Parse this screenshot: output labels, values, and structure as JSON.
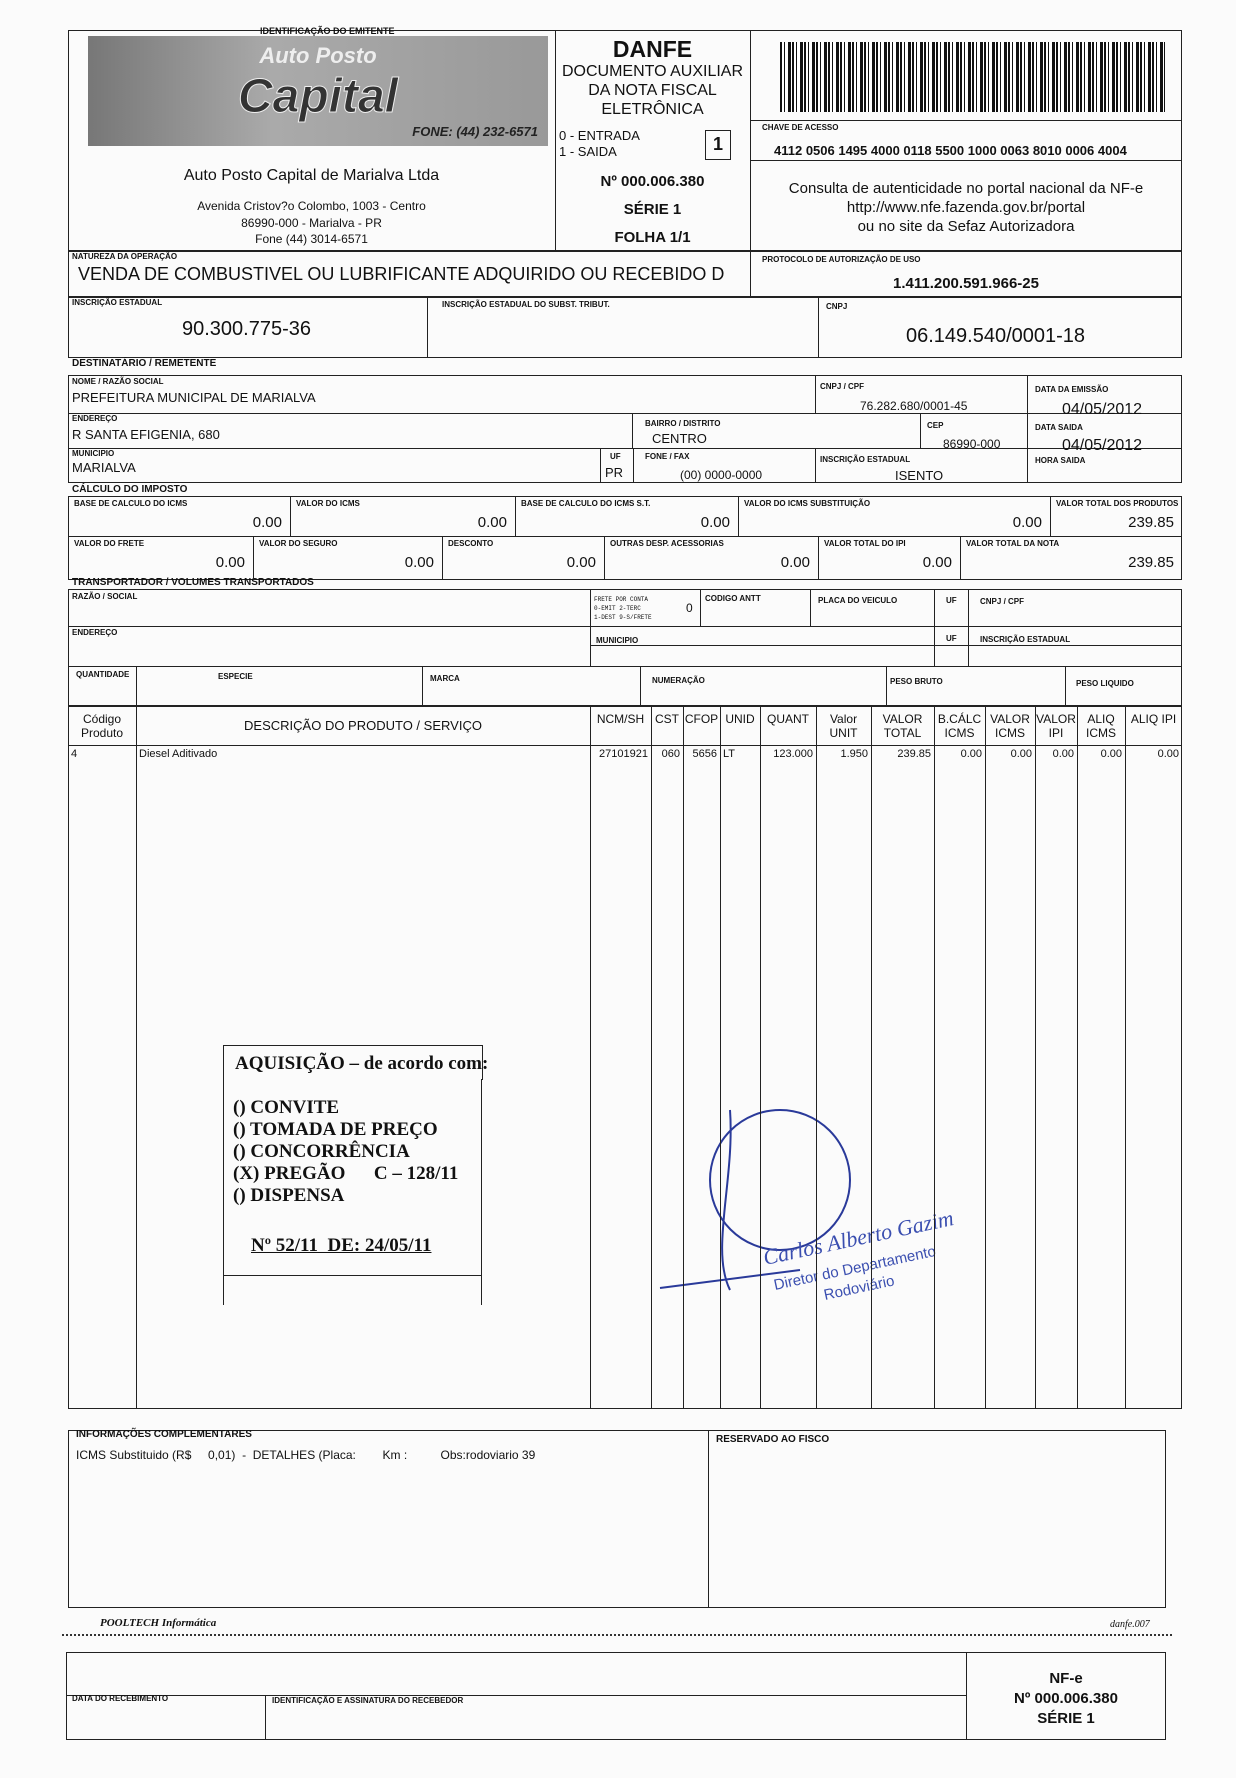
{
  "emitente": {
    "section_label": "IDENTIFICAÇÃO DO EMITENTE",
    "logo_line1": "Auto Posto",
    "logo_line2": "Capital",
    "logo_phone": "FONE: (44) 232-6571",
    "name": "Auto Posto Capital de Marialva Ltda",
    "address": "Avenida Cristov?o Colombo, 1003 - Centro",
    "city": "86990-000 - Marialva - PR",
    "phone": "Fone (44) 3014-6571"
  },
  "danfe": {
    "title": "DANFE",
    "subtitle1": "DOCUMENTO AUXILIAR",
    "subtitle2": "DA NOTA FISCAL",
    "subtitle3": "ELETRÔNICA",
    "entrada": "0 - ENTRADA",
    "saida": "1 - SAIDA",
    "tipo": "1",
    "numero": "Nº 000.006.380",
    "serie": "SÉRIE 1",
    "folha": "FOLHA 1/1"
  },
  "chave": {
    "label": "CHAVE DE ACESSO",
    "value": "4112 0506 1495 4000 0118 5500 1000 0063 8010 0006 4004",
    "consulta1": "Consulta de autenticidade no portal nacional da NF-e",
    "consulta2": "http://www.nfe.fazenda.gov.br/portal",
    "consulta3": "ou no site da Sefaz Autorizadora"
  },
  "natureza": {
    "label": "NATUREZA DA OPERAÇÃO",
    "value": "VENDA DE COMBUSTIVEL OU LUBRIFICANTE ADQUIRIDO OU RECEBIDO D"
  },
  "protocolo": {
    "label": "PROTOCOLO DE AUTORIZAÇÃO DE USO",
    "value": "1.411.200.591.966-25"
  },
  "ie": {
    "label": "INSCRIÇÃO ESTADUAL",
    "value": "90.300.775-36",
    "st_label": "INSCRIÇÃO ESTADUAL DO SUBST. TRIBUT.",
    "cnpj_label": "CNPJ",
    "cnpj": "06.149.540/0001-18"
  },
  "dest": {
    "title": "DESTINATÁRIO / REMETENTE",
    "nome_label": "NOME / RAZÃO SOCIAL",
    "nome": "PREFEITURA MUNICIPAL DE MARIALVA",
    "cnpj_label": "CNPJ / CPF",
    "cnpj": "76.282.680/0001-45",
    "emissao_label": "DATA DA EMISSÃO",
    "emissao": "04/05/2012",
    "end_label": "ENDEREÇO",
    "endereco": "R SANTA EFIGENIA, 680",
    "bairro_label": "BAIRRO / DISTRITO",
    "bairro": "CENTRO",
    "cep_label": "CEP",
    "cep": "86990-000",
    "saida_label": "DATA SAIDA",
    "saida": "04/05/2012",
    "mun_label": "MUNICIPIO",
    "municipio": "MARIALVA",
    "uf_label": "UF",
    "uf": "PR",
    "fone_label": "FONE / FAX",
    "fone": "(00) 0000-0000",
    "ie_label": "INSCRIÇÃO ESTADUAL",
    "ie": "ISENTO",
    "hora_label": "HORA SAIDA"
  },
  "imposto": {
    "title": "CÁLCULO DO IMPOSTO",
    "fields": [
      {
        "label": "BASE DE CALCULO DO ICMS",
        "value": "0.00"
      },
      {
        "label": "VALOR DO ICMS",
        "value": "0.00"
      },
      {
        "label": "BASE DE CALCULO DO ICMS S.T.",
        "value": "0.00"
      },
      {
        "label": "VALOR DO ICMS SUBSTITUIÇÃO",
        "value": "0.00"
      },
      {
        "label": "VALOR TOTAL DOS PRODUTOS",
        "value": "239.85"
      },
      {
        "label": "VALOR DO FRETE",
        "value": "0.00"
      },
      {
        "label": "VALOR DO SEGURO",
        "value": "0.00"
      },
      {
        "label": "DESCONTO",
        "value": "0.00"
      },
      {
        "label": "OUTRAS DESP. ACESSORIAS",
        "value": "0.00"
      },
      {
        "label": "VALOR TOTAL DO IPI",
        "value": "0.00"
      },
      {
        "label": "VALOR TOTAL DA NOTA",
        "value": "239.85"
      }
    ]
  },
  "transp": {
    "title": "TRANSPORTADOR / VOLUMES TRANSPORTADOS",
    "razao": "RAZÃO / SOCIAL",
    "frete1": "FRETE POR CONTA",
    "frete2": "0-EMIT 2-TERC",
    "frete3": "1-DEST 9-S/FRETE",
    "frete_value": "0",
    "antt": "CODIGO ANTT",
    "placa": "PLACA DO VEICULO",
    "uf": "UF",
    "cnpj": "CNPJ / CPF",
    "endereco": "ENDEREÇO",
    "municipio": "MUNICIPIO",
    "ie": "INSCRIÇÃO ESTADUAL",
    "quantidade": "QUANTIDADE",
    "especie": "ESPECIE",
    "marca": "MARCA",
    "numeracao": "NUMERAÇÃO",
    "peso_bruto": "PESO BRUTO",
    "peso_liquido": "PESO LIQUIDO"
  },
  "produtos": {
    "headers": [
      "Código Produto",
      "DESCRIÇÃO DO PRODUTO / SERVIÇO",
      "NCM/SH",
      "CST",
      "CFOP",
      "UNID",
      "QUANT",
      "Valor UNIT",
      "VALOR TOTAL",
      "B.CÁLC ICMS",
      "VALOR ICMS",
      "VALOR IPI",
      "ALIQ ICMS",
      "ALIQ IPI"
    ],
    "rows": [
      [
        "4",
        "Diesel Aditivado",
        "27101921",
        "060",
        "5656",
        "LT",
        "123.000",
        "1.950",
        "239.85",
        "0.00",
        "0.00",
        "0.00",
        "0.00",
        "0.00"
      ]
    ]
  },
  "stamp": {
    "title": "AQUISIÇÃO – de acordo com:",
    "options": [
      "() CONVITE",
      "() TOMADA DE PREÇO",
      "() CONCORRÊNCIA",
      "(X) PREGÃO      C – 128/11",
      "() DISPENSA"
    ],
    "numero": "Nº 52/11  DE: 24/05/11"
  },
  "signature": {
    "name": "Carlos Alberto Gazim",
    "role1": "Diretor do Departamento",
    "role2": "Rodoviário"
  },
  "info": {
    "label": "INFORMAÇÕES COMPLEMENTARES",
    "text": "ICMS Substituido (R$     0,01)  -  DETALHES (Placa:        Km :          Obs:rodoviario 39",
    "fisco_label": "RESERVADO AO FISCO"
  },
  "footer": {
    "left": "POOLTECH Informática",
    "right": "danfe.007"
  },
  "canhoto": {
    "data_label": "DATA DO RECEBIMENTO",
    "assin_label": "IDENTIFICAÇÃO E ASSINATURA DO RECEBEDOR",
    "nfe": "NF-e",
    "numero": "Nº 000.006.380",
    "serie": "SÉRIE 1"
  }
}
